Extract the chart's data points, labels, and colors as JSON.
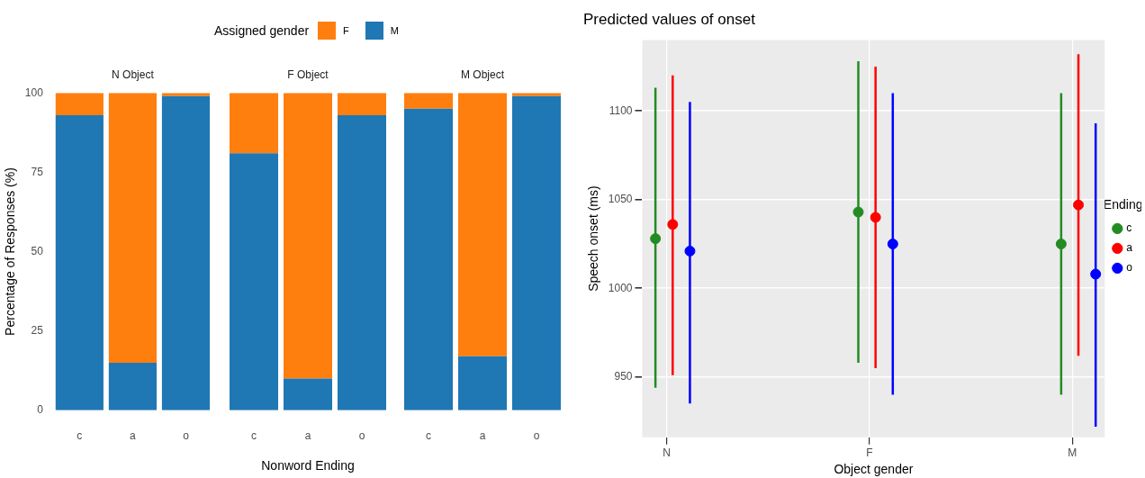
{
  "chart_data": [
    {
      "type": "bar",
      "title": "N Object",
      "ylabel": "Percentage of Responses (%)",
      "legend_title": "Assigned gender",
      "legend": "top",
      "stacked": true,
      "categories": [
        "c",
        "a",
        "o"
      ],
      "ylim": [
        0,
        100
      ],
      "yticks": [
        0,
        25,
        50,
        75,
        100
      ],
      "series": [
        {
          "name": "M",
          "color": "#1f77b4",
          "values": [
            93,
            15,
            99
          ]
        },
        {
          "name": "F",
          "color": "#ff7f0e",
          "values": [
            7,
            85,
            1
          ]
        }
      ]
    },
    {
      "type": "bar",
      "title": "F Object",
      "xlabel": "Nonword Ending",
      "stacked": true,
      "tick_labels": "x",
      "categories": [
        "c",
        "a",
        "o"
      ],
      "ylim": [
        0,
        100
      ],
      "series": [
        {
          "color": "#1f77b4",
          "values": [
            81,
            10,
            93
          ]
        },
        {
          "color": "#ff7f0e",
          "values": [
            19,
            90,
            7
          ]
        }
      ]
    },
    {
      "type": "bar",
      "title": "M Object",
      "stacked": true,
      "tick_labels": "x",
      "categories": [
        "c",
        "a",
        "o"
      ],
      "ylim": [
        0,
        100
      ],
      "series": [
        {
          "color": "#1f77b4",
          "values": [
            95,
            17,
            99
          ]
        },
        {
          "color": "#ff7f0e",
          "values": [
            5,
            83,
            1
          ]
        }
      ]
    },
    {
      "type": "scatter",
      "title": "Predicted values of onset",
      "xlabel": "Object gender",
      "ylabel": "Speech onset (ms)",
      "legend_title": "Ending",
      "legend": "right",
      "marker": "circle",
      "grid": true,
      "categories": [
        "N",
        "F",
        "M"
      ],
      "ylim": [
        916,
        1140
      ],
      "yticks": [
        950,
        1000,
        1050,
        1100
      ],
      "series": [
        {
          "name": "c",
          "color": "#228b22",
          "values": [
            1028,
            1043,
            1025
          ],
          "errors": [
            [
              944,
              1113
            ],
            [
              958,
              1128
            ],
            [
              940,
              1110
            ]
          ]
        },
        {
          "name": "a",
          "color": "#ff0000",
          "values": [
            1036,
            1040,
            1047
          ],
          "errors": [
            [
              951,
              1120
            ],
            [
              955,
              1125
            ],
            [
              962,
              1132
            ]
          ]
        },
        {
          "name": "o",
          "color": "#0000ff",
          "values": [
            1021,
            1025,
            1008
          ],
          "errors": [
            [
              935,
              1105
            ],
            [
              940,
              1110
            ],
            [
              922,
              1093
            ]
          ]
        }
      ]
    }
  ]
}
